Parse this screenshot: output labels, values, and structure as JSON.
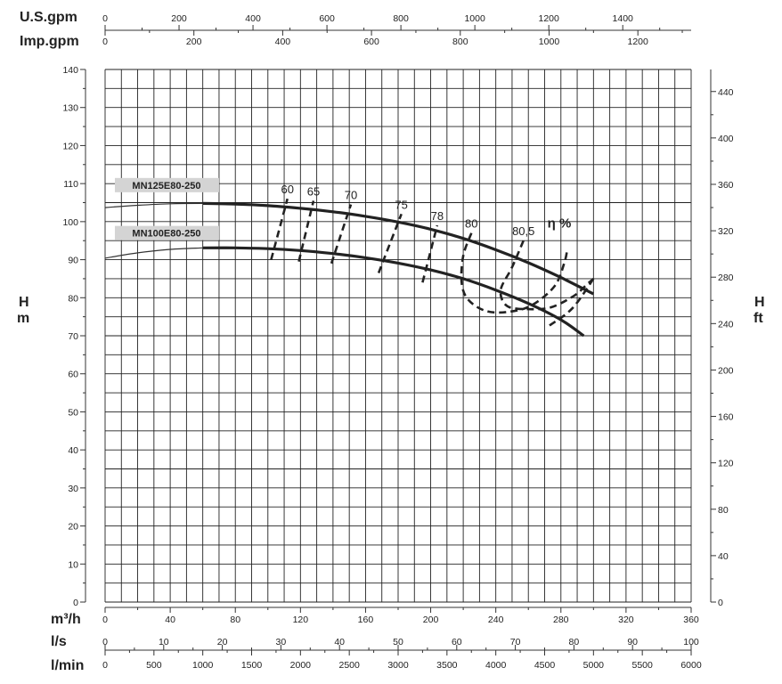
{
  "chart_data": {
    "type": "line",
    "title": "",
    "unit_labels": {
      "usgpm": "U.S.gpm",
      "impgpm": "Imp.gpm",
      "m3h": "m³/h",
      "ls": "l/s",
      "lmin": "l/min",
      "head_m": [
        "H",
        "m"
      ],
      "head_ft": [
        "H",
        "ft"
      ]
    },
    "x_axis": {
      "label": "m³/h",
      "range": [
        0,
        360
      ],
      "ticks": [
        0,
        40,
        80,
        120,
        160,
        200,
        240,
        280,
        320,
        360
      ]
    },
    "y_axis": {
      "label": "H m",
      "range": [
        0,
        140
      ],
      "ticks": [
        0,
        10,
        20,
        30,
        40,
        50,
        60,
        70,
        80,
        90,
        100,
        110,
        120,
        130,
        140
      ]
    },
    "secondary_axes": {
      "usgpm": {
        "range": [
          0,
          1585
        ],
        "ticks": [
          0,
          200,
          400,
          600,
          800,
          1000,
          1200,
          1400
        ]
      },
      "impgpm": {
        "range": [
          0,
          1320
        ],
        "ticks": [
          0,
          200,
          400,
          600,
          800,
          1000,
          1200
        ]
      },
      "ls": {
        "range": [
          0,
          100
        ],
        "ticks": [
          0,
          10,
          20,
          30,
          40,
          50,
          60,
          70,
          80,
          90,
          100
        ]
      },
      "lmin": {
        "range": [
          0,
          6000
        ],
        "ticks": [
          0,
          500,
          1000,
          1500,
          2000,
          2500,
          3000,
          3500,
          4000,
          4500,
          5000,
          5500,
          6000
        ]
      },
      "ft": {
        "range": [
          0,
          459
        ],
        "ticks": [
          0,
          40,
          80,
          120,
          160,
          200,
          240,
          280,
          320,
          360,
          400,
          440
        ]
      }
    },
    "grid": true,
    "series": [
      {
        "name": "MN125E80-250",
        "x": [
          0,
          20,
          40,
          60,
          80,
          100,
          120,
          140,
          160,
          180,
          200,
          220,
          240,
          260,
          280,
          300
        ],
        "y": [
          103.7,
          104.3,
          104.7,
          104.8,
          104.6,
          104.2,
          103.5,
          102.6,
          101.4,
          99.9,
          98,
          95.6,
          92.6,
          89.2,
          85.3,
          81
        ]
      },
      {
        "name": "MN100E80-250",
        "x": [
          0,
          20,
          40,
          60,
          80,
          100,
          120,
          140,
          160,
          180,
          200,
          220,
          240,
          260,
          280,
          294
        ],
        "y": [
          90.4,
          91.8,
          92.7,
          93.1,
          93.1,
          92.9,
          92.4,
          91.6,
          90.5,
          89.1,
          87.3,
          85,
          82,
          78.5,
          74.2,
          70
        ]
      }
    ],
    "efficiency_curves": {
      "label": "η %",
      "levels": [
        {
          "label": "60",
          "points": [
            [
              102,
              90
            ],
            [
              112,
              106
            ]
          ]
        },
        {
          "label": "65",
          "points": [
            [
              119,
              89.5
            ],
            [
              128,
              105.5
            ]
          ]
        },
        {
          "label": "70",
          "points": [
            [
              139,
              89
            ],
            [
              151,
              104.5
            ]
          ]
        },
        {
          "label": "75",
          "points": [
            [
              168,
              86.5
            ],
            [
              182,
              102
            ]
          ]
        },
        {
          "label": "78",
          "points": [
            [
              195,
              84
            ],
            [
              204,
              99
            ]
          ]
        },
        {
          "label": "80",
          "points": [
            [
              225,
              97
            ],
            [
              220,
              91
            ],
            [
              219,
              84
            ],
            [
              223,
              79.5
            ],
            [
              234,
              76.5
            ],
            [
              248,
              76.3
            ],
            [
              262,
              78
            ],
            [
              276,
              83
            ],
            [
              282,
              89
            ],
            [
              284,
              93
            ]
          ]
        },
        {
          "label": "80,5",
          "points": [
            [
              257,
              95
            ],
            [
              250,
              88
            ],
            [
              243,
              82
            ],
            [
              247,
              77.8
            ],
            [
              260,
              77
            ],
            [
              274,
              77.5
            ],
            [
              288,
              80.5
            ],
            [
              296,
              83.5
            ],
            [
              300,
              85
            ]
          ]
        }
      ],
      "tail": [
        [
          273,
          72.7
        ],
        [
          287,
          77.2
        ],
        [
          300,
          85
        ]
      ]
    }
  }
}
